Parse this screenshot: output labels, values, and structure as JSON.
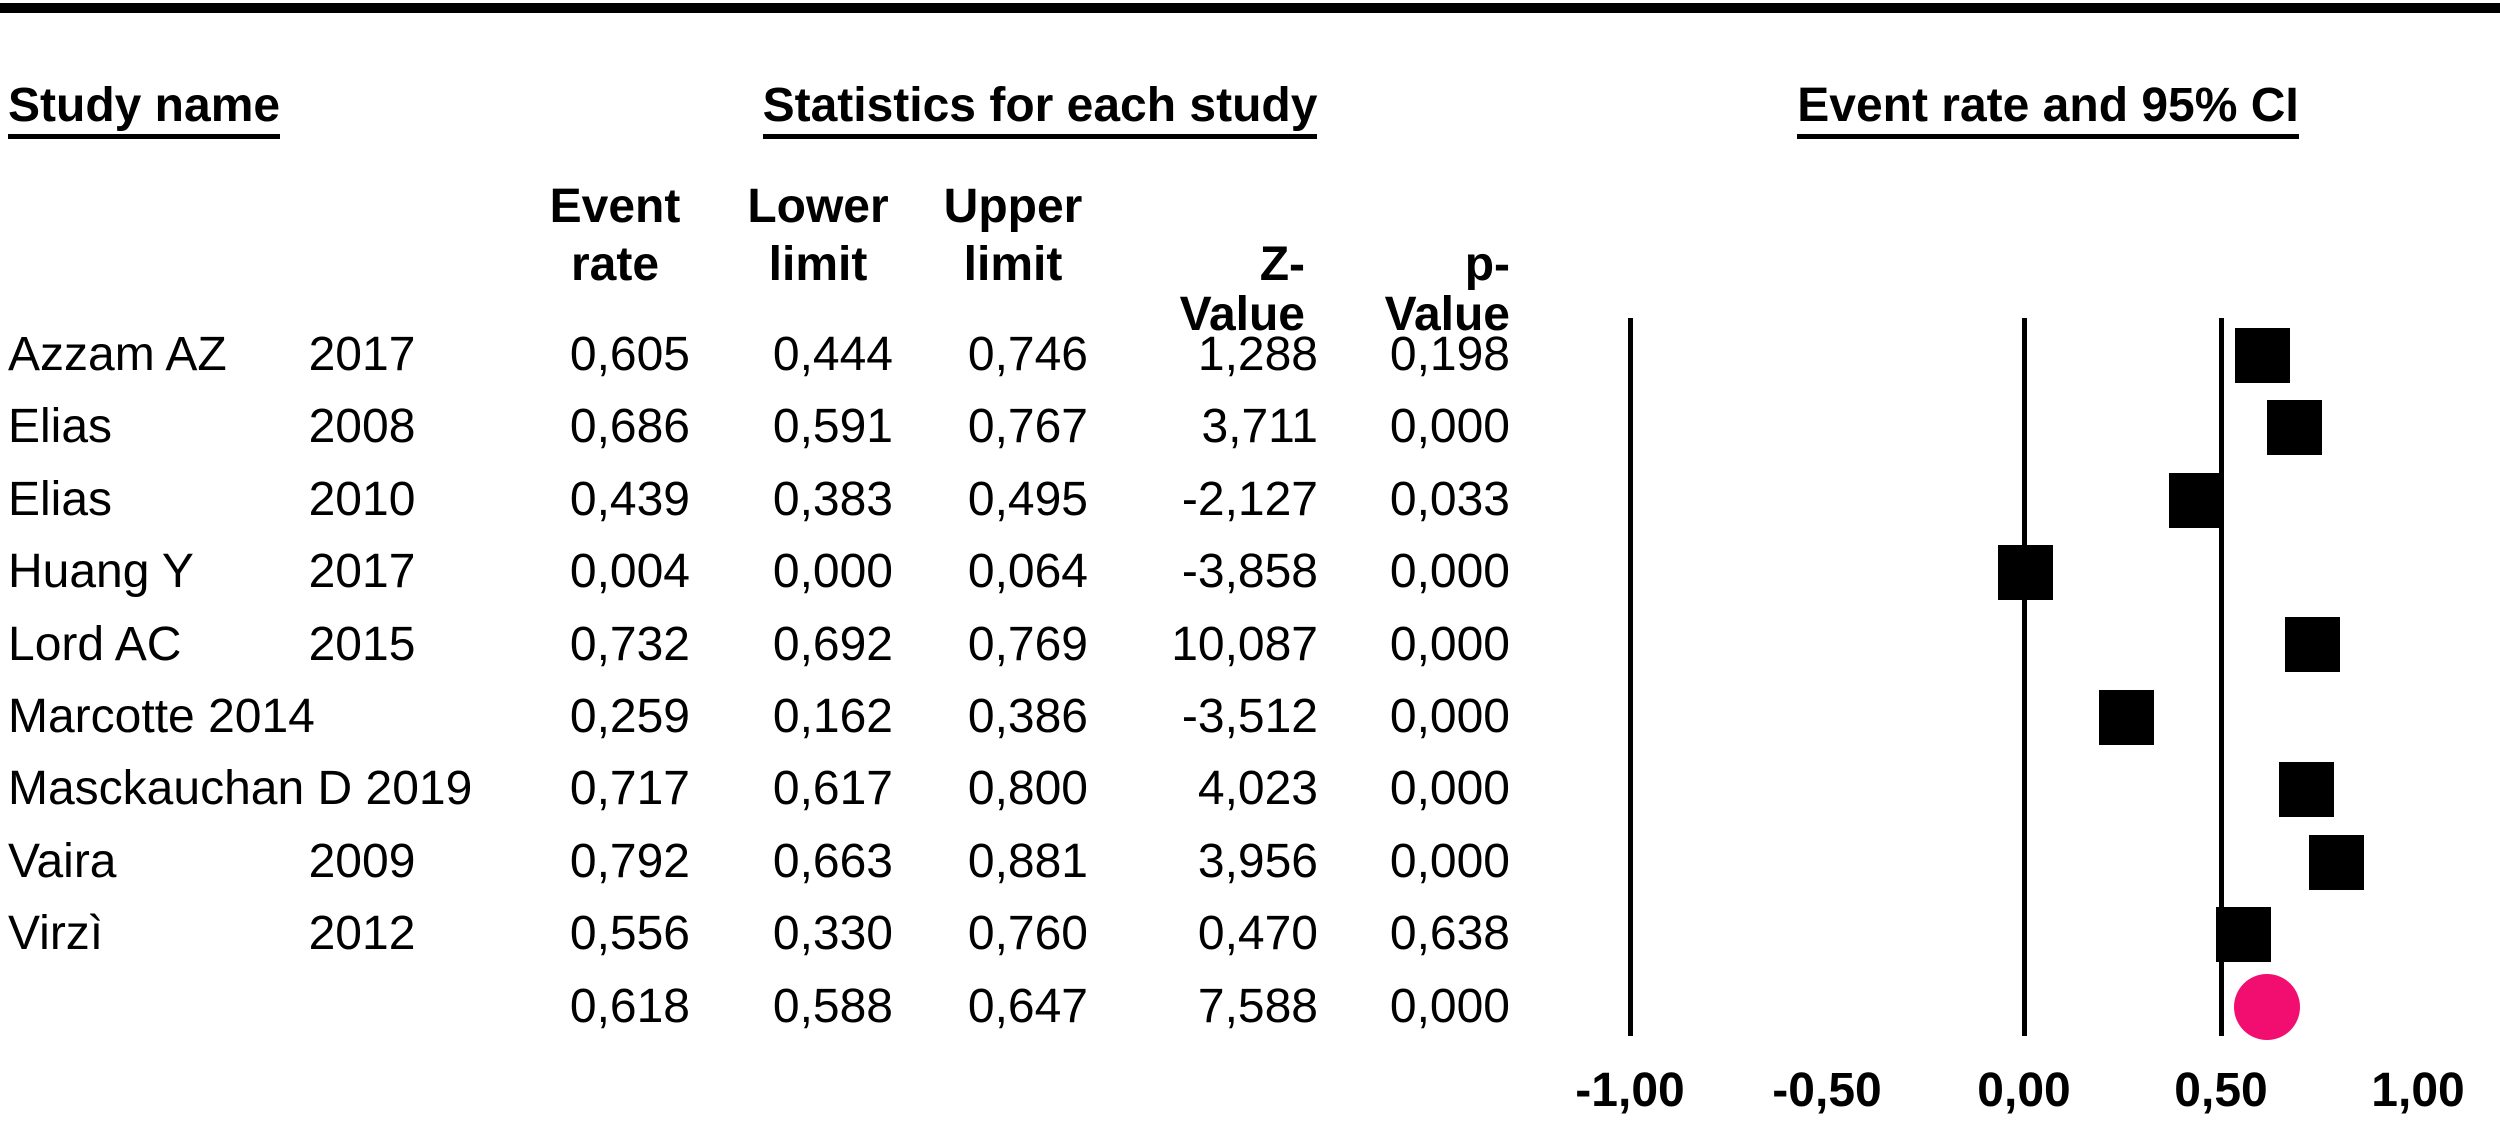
{
  "headers": {
    "study_name": "Study name",
    "statistics": "Statistics for each study",
    "plot": "Event rate and 95% CI"
  },
  "columns": {
    "event_l1": "Event",
    "event_l2": "rate",
    "lower_l1": "Lower",
    "lower_l2": "limit",
    "upper_l1": "Upper",
    "upper_l2": "limit",
    "z": "Z-Value",
    "p": "p-Value"
  },
  "table": {
    "rows": [
      {
        "name": "Azzam AZ",
        "year": "2017",
        "event_rate": "0,605",
        "lower": "0,444",
        "upper": "0,746",
        "z": "1,288",
        "p": "0,198"
      },
      {
        "name": "Elias",
        "year": "2008",
        "event_rate": "0,686",
        "lower": "0,591",
        "upper": "0,767",
        "z": "3,711",
        "p": "0,000"
      },
      {
        "name": "Elias",
        "year": "2010",
        "event_rate": "0,439",
        "lower": "0,383",
        "upper": "0,495",
        "z": "-2,127",
        "p": "0,033"
      },
      {
        "name": "Huang Y",
        "year": "2017",
        "event_rate": "0,004",
        "lower": "0,000",
        "upper": "0,064",
        "z": "-3,858",
        "p": "0,000"
      },
      {
        "name": "Lord AC",
        "year": "2015",
        "event_rate": "0,732",
        "lower": "0,692",
        "upper": "0,769",
        "z": "10,087",
        "p": "0,000"
      },
      {
        "name": "Marcotte 2014",
        "year": "",
        "event_rate": "0,259",
        "lower": "0,162",
        "upper": "0,386",
        "z": "-3,512",
        "p": "0,000"
      },
      {
        "name": "Masckauchan D 2019",
        "year": "",
        "event_rate": "0,717",
        "lower": "0,617",
        "upper": "0,800",
        "z": "4,023",
        "p": "0,000"
      },
      {
        "name": "Vaira",
        "year": "2009",
        "event_rate": "0,792",
        "lower": "0,663",
        "upper": "0,881",
        "z": "3,956",
        "p": "0,000"
      },
      {
        "name": "Virzì",
        "year": "2012",
        "event_rate": "0,556",
        "lower": "0,330",
        "upper": "0,760",
        "z": "0,470",
        "p": "0,638"
      },
      {
        "name": "",
        "year": "",
        "event_rate": "0,618",
        "lower": "0,588",
        "upper": "0,647",
        "z": "7,588",
        "p": "0,000"
      }
    ]
  },
  "chart_data": {
    "type": "scatter",
    "variant": "forest-plot",
    "title": "Event rate and 95% CI",
    "xlabel": "Event rate",
    "xlim": [
      -1.0,
      1.0
    ],
    "x_ticks": [
      -1.0,
      -0.5,
      0.0,
      0.5,
      1.0
    ],
    "x_tick_labels": [
      "-1,00",
      "-0,50",
      "0,00",
      "0,50",
      "1,00"
    ],
    "reference_lines": [
      -1.0,
      0.0,
      0.5
    ],
    "grid": false,
    "studies": [
      {
        "name": "Azzam AZ",
        "year": "2017",
        "event_rate": 0.605,
        "lower": 0.444,
        "upper": 0.746,
        "z": 1.288,
        "p": 0.198
      },
      {
        "name": "Elias",
        "year": "2008",
        "event_rate": 0.686,
        "lower": 0.591,
        "upper": 0.767,
        "z": 3.711,
        "p": 0.0
      },
      {
        "name": "Elias",
        "year": "2010",
        "event_rate": 0.439,
        "lower": 0.383,
        "upper": 0.495,
        "z": -2.127,
        "p": 0.033
      },
      {
        "name": "Huang Y",
        "year": "2017",
        "event_rate": 0.004,
        "lower": 0.0,
        "upper": 0.064,
        "z": -3.858,
        "p": 0.0
      },
      {
        "name": "Lord AC",
        "year": "2015",
        "event_rate": 0.732,
        "lower": 0.692,
        "upper": 0.769,
        "z": 10.087,
        "p": 0.0
      },
      {
        "name": "Marcotte",
        "year": "2014",
        "event_rate": 0.259,
        "lower": 0.162,
        "upper": 0.386,
        "z": -3.512,
        "p": 0.0
      },
      {
        "name": "Masckauchan D",
        "year": "2019",
        "event_rate": 0.717,
        "lower": 0.617,
        "upper": 0.8,
        "z": 4.023,
        "p": 0.0
      },
      {
        "name": "Vaira",
        "year": "2009",
        "event_rate": 0.792,
        "lower": 0.663,
        "upper": 0.881,
        "z": 3.956,
        "p": 0.0
      },
      {
        "name": "Virzì",
        "year": "2012",
        "event_rate": 0.556,
        "lower": 0.33,
        "upper": 0.76,
        "z": 0.47,
        "p": 0.638
      }
    ],
    "overall": {
      "event_rate": 0.618,
      "lower": 0.588,
      "upper": 0.647,
      "z": 7.588,
      "p": 0.0
    },
    "marker_colors": {
      "study": "#000000",
      "overall": "#F20D70"
    }
  }
}
